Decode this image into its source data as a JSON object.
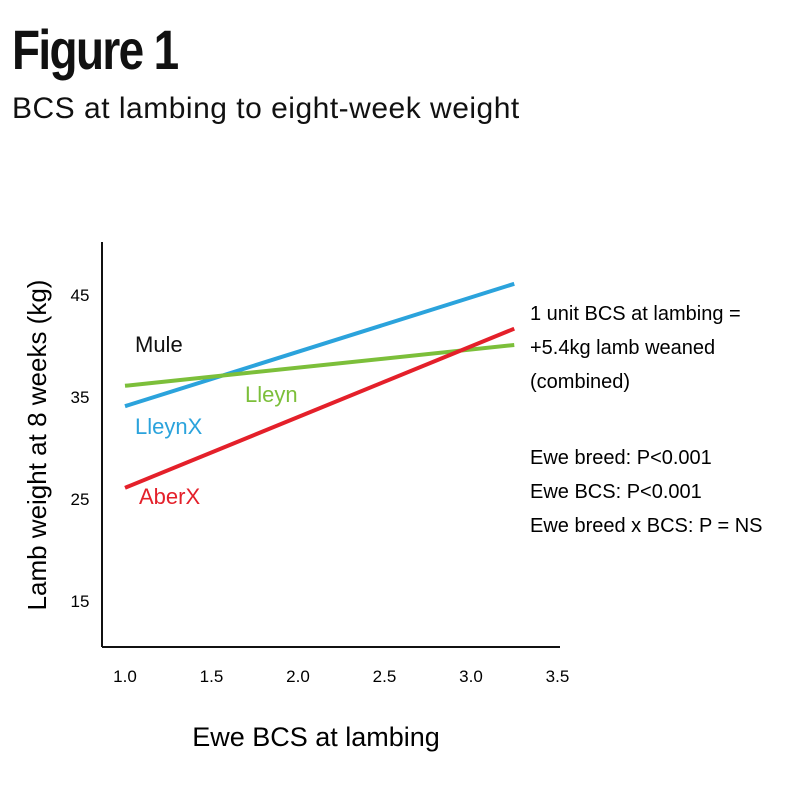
{
  "header": {
    "title": "Figure 1",
    "subtitle": "BCS at lambing to eight-week weight"
  },
  "chart_data": {
    "type": "line",
    "title": "Figure 1",
    "subtitle": "BCS at lambing to eight-week weight",
    "xlabel": "Ewe BCS at lambing",
    "ylabel": "Lamb weight at 8 weeks (kg)",
    "xlim": [
      1.0,
      3.5
    ],
    "ylim": [
      10,
      50
    ],
    "xticks": [
      "1.0",
      "1.5",
      "2.0",
      "2.5",
      "3.0",
      "3.5"
    ],
    "yticks": [
      "15",
      "25",
      "35",
      "45"
    ],
    "grid": false,
    "series": [
      {
        "name": "LleynX",
        "color": "#2ba3dc",
        "x": [
          1.0,
          3.25
        ],
        "y": [
          34.0,
          46.0
        ]
      },
      {
        "name": "Lleyn",
        "color": "#7cbf3a",
        "x": [
          1.0,
          3.25
        ],
        "y": [
          36.0,
          40.0
        ]
      },
      {
        "name": "AberX",
        "color": "#e4202a",
        "x": [
          1.0,
          3.25
        ],
        "y": [
          26.0,
          41.6
        ]
      }
    ],
    "labels": [
      {
        "text": "Mule",
        "color": "#111111"
      },
      {
        "text": "LleynX",
        "color": "#2ba3dc"
      },
      {
        "text": "Lleyn",
        "color": "#7cbf3a"
      },
      {
        "text": "AberX",
        "color": "#e4202a"
      }
    ],
    "annotations": [
      "1 unit BCS at lambing =",
      "+5.4kg lamb weaned",
      "(combined)",
      "Ewe breed: P<0.001",
      "Ewe BCS: P<0.001",
      "Ewe breed x BCS: P = NS"
    ]
  }
}
